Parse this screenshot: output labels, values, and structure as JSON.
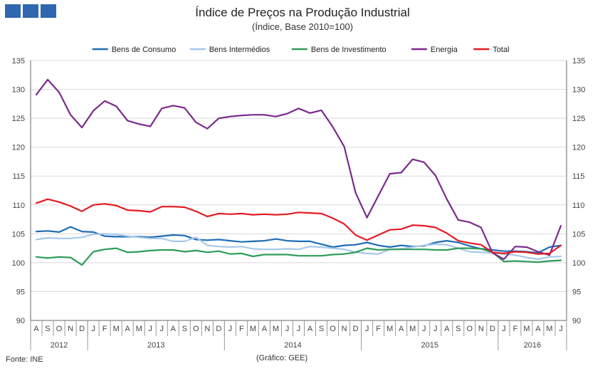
{
  "header": {
    "title": "Índice de Preços na Produção Industrial",
    "subtitle": "(Índice, Base 2010=100)"
  },
  "footer": {
    "source": "Fonte: INE",
    "credit": "(Gráfico: GEE)"
  },
  "chart_data": {
    "type": "line",
    "title": "Índice de Preços na Produção Industrial",
    "subtitle": "(Índice, Base 2010=100)",
    "xlabel": "",
    "ylabel": "",
    "ylim": [
      90,
      135
    ],
    "yticks": [
      90,
      95,
      100,
      105,
      110,
      115,
      120,
      125,
      130,
      135
    ],
    "grid": true,
    "legend_position": "top",
    "month_labels": [
      "A",
      "S",
      "O",
      "N",
      "D",
      "J",
      "F",
      "M",
      "A",
      "M",
      "J",
      "J",
      "A",
      "S",
      "O",
      "N",
      "D",
      "J",
      "F",
      "M",
      "A",
      "M",
      "J",
      "J",
      "A",
      "S",
      "O",
      "N",
      "D",
      "J",
      "F",
      "M",
      "A",
      "M",
      "J",
      "J",
      "A",
      "S",
      "O",
      "N",
      "D",
      "J",
      "F",
      "M",
      "A",
      "M",
      "J"
    ],
    "year_groups": [
      {
        "label": "2012",
        "months": 5
      },
      {
        "label": "2013",
        "months": 12
      },
      {
        "label": "2014",
        "months": 12
      },
      {
        "label": "2015",
        "months": 12
      },
      {
        "label": "2016",
        "months": 6
      }
    ],
    "series": [
      {
        "name": "Bens de Consumo",
        "color": "#1f6db5",
        "values": [
          105.4,
          105.5,
          105.3,
          106.2,
          105.4,
          105.3,
          104.6,
          104.5,
          104.5,
          104.5,
          104.4,
          104.6,
          104.8,
          104.7,
          104.0,
          103.9,
          104.0,
          103.8,
          103.6,
          103.7,
          103.8,
          104.1,
          103.8,
          103.7,
          103.7,
          103.2,
          102.7,
          103.0,
          103.1,
          103.5,
          103.0,
          102.7,
          103.0,
          102.8,
          102.9,
          103.5,
          103.8,
          103.5,
          102.9,
          102.4,
          102.2,
          102.0,
          102.0,
          101.9,
          101.7,
          102.7,
          103.0
        ]
      },
      {
        "name": "Bens Intermédios",
        "color": "#a6c8ea",
        "values": [
          104.0,
          104.3,
          104.2,
          104.2,
          104.4,
          104.9,
          105.0,
          104.9,
          104.6,
          104.4,
          104.2,
          104.2,
          103.7,
          103.7,
          104.4,
          103.0,
          102.8,
          102.7,
          102.8,
          102.4,
          102.3,
          102.3,
          102.4,
          102.3,
          102.8,
          102.7,
          102.5,
          102.3,
          101.8,
          101.6,
          101.5,
          102.3,
          102.4,
          102.7,
          103.0,
          103.2,
          103.1,
          102.5,
          101.9,
          101.8,
          101.7,
          101.5,
          101.3,
          100.9,
          100.6,
          101.0,
          101.1
        ]
      },
      {
        "name": "Bens de Investimento",
        "color": "#2f9c5a",
        "values": [
          101.0,
          100.8,
          101.0,
          100.9,
          99.6,
          101.9,
          102.3,
          102.5,
          101.8,
          101.9,
          102.1,
          102.2,
          102.2,
          101.9,
          102.1,
          101.8,
          102.0,
          101.5,
          101.6,
          101.1,
          101.4,
          101.4,
          101.4,
          101.2,
          101.2,
          101.2,
          101.4,
          101.5,
          101.8,
          102.5,
          102.2,
          102.3,
          102.3,
          102.3,
          102.3,
          102.2,
          102.2,
          102.5,
          102.5,
          102.4,
          101.8,
          100.2,
          100.3,
          100.2,
          100.1,
          100.3,
          100.4
        ]
      },
      {
        "name": "Energia",
        "color": "#7b2a8c",
        "values": [
          129.1,
          131.7,
          129.5,
          125.6,
          123.4,
          126.3,
          128.0,
          127.1,
          124.6,
          124.0,
          123.6,
          126.7,
          127.2,
          126.8,
          124.3,
          123.2,
          125.0,
          125.3,
          125.5,
          125.6,
          125.6,
          125.3,
          125.8,
          126.7,
          125.9,
          126.4,
          123.5,
          120.1,
          112.1,
          107.8,
          111.6,
          115.4,
          115.6,
          117.9,
          117.4,
          115.1,
          111.0,
          107.4,
          107.0,
          106.1,
          101.7,
          100.6,
          102.8,
          102.7,
          101.9,
          101.3,
          106.4
        ]
      },
      {
        "name": "Total",
        "color": "#e31b23",
        "values": [
          110.3,
          111.0,
          110.5,
          109.8,
          108.9,
          110.0,
          110.2,
          109.9,
          109.1,
          109.0,
          108.8,
          109.7,
          109.7,
          109.6,
          108.9,
          108.0,
          108.5,
          108.4,
          108.5,
          108.3,
          108.4,
          108.3,
          108.4,
          108.7,
          108.6,
          108.5,
          107.7,
          106.7,
          104.8,
          103.9,
          104.8,
          105.7,
          105.8,
          106.5,
          106.4,
          106.1,
          105.1,
          103.8,
          103.4,
          103.1,
          101.8,
          101.6,
          101.9,
          101.8,
          101.5,
          101.6,
          103.0
        ]
      }
    ]
  }
}
